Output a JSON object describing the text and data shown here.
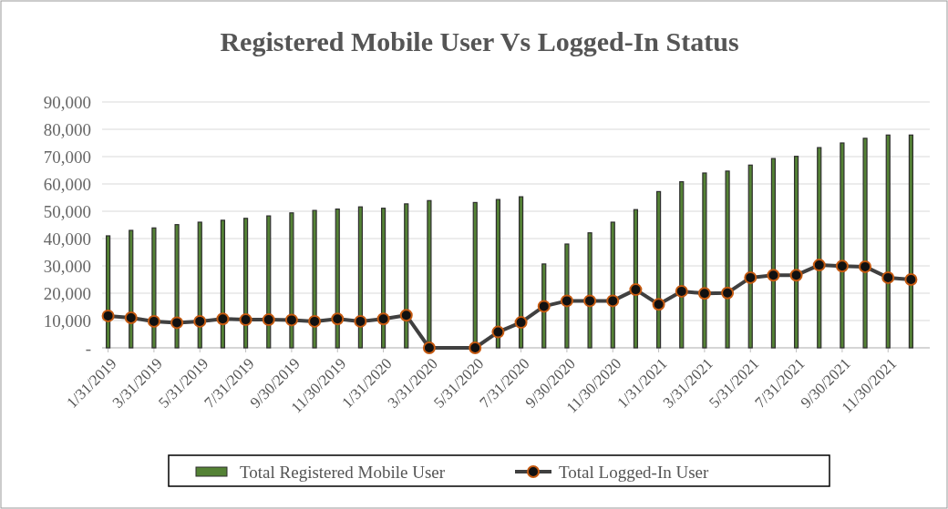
{
  "chart_data": {
    "type": "bar",
    "title": "Registered Mobile User Vs Logged-In Status",
    "categories": [
      "1/31/2019",
      null,
      "3/31/2019",
      null,
      "5/31/2019",
      null,
      "7/31/2019",
      null,
      "9/30/2019",
      null,
      "11/30/2019",
      null,
      "1/31/2020",
      null,
      "3/31/2020",
      null,
      "5/31/2020",
      null,
      "7/31/2020",
      null,
      "9/30/2020",
      null,
      "11/30/2020",
      null,
      "1/31/2021",
      null,
      "3/31/2021",
      null,
      "5/31/2021",
      null,
      "7/31/2021",
      null,
      "9/30/2021",
      null,
      "11/30/2021",
      null
    ],
    "series": [
      {
        "name": "Total Registered Mobile User",
        "color": "#548235",
        "values": [
          41000,
          43000,
          43900,
          45100,
          46000,
          46700,
          47400,
          48300,
          49400,
          50300,
          50800,
          51600,
          51100,
          52700,
          53900,
          null,
          53200,
          54300,
          55300,
          30700,
          38000,
          42100,
          46000,
          50600,
          57200,
          60800,
          64000,
          64700,
          66900,
          69300,
          70100,
          73300,
          75000,
          76700,
          77900,
          77900
        ]
      },
      {
        "name": "Total Logged-In User",
        "type": "line",
        "color": "#404040",
        "marker": "circle",
        "values": [
          11700,
          11000,
          9700,
          9200,
          9700,
          10600,
          10300,
          10300,
          10200,
          9700,
          10600,
          9700,
          10600,
          11900,
          0,
          null,
          0,
          5800,
          9300,
          15200,
          17200,
          17200,
          17200,
          21300,
          15900,
          20700,
          19900,
          20100,
          25700,
          26600,
          26600,
          30300,
          29900,
          29700,
          25700,
          25000
        ]
      }
    ],
    "ylim": [
      0,
      90000
    ],
    "yticks": [
      {
        "value": 0,
        "label": "-"
      },
      {
        "value": 10000,
        "label": "10,000"
      },
      {
        "value": 20000,
        "label": "20,000"
      },
      {
        "value": 30000,
        "label": "30,000"
      },
      {
        "value": 40000,
        "label": "40,000"
      },
      {
        "value": 50000,
        "label": "50,000"
      },
      {
        "value": 60000,
        "label": "60,000"
      },
      {
        "value": 70000,
        "label": "70,000"
      },
      {
        "value": 80000,
        "label": "80,000"
      },
      {
        "value": 90000,
        "label": "90,000"
      }
    ],
    "grid": "y",
    "legend": "bottom"
  }
}
